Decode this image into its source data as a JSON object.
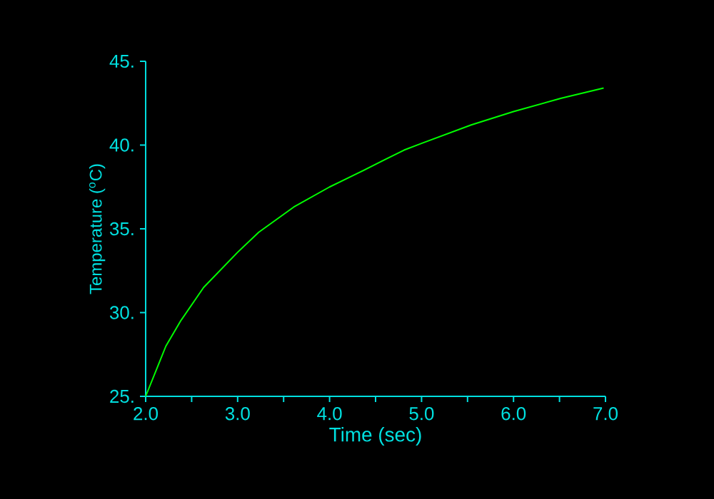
{
  "chart_data": {
    "type": "line",
    "xlabel": "Time (sec)",
    "ylabel": "Temperature ($^{o}$C)",
    "x": [
      2.0,
      2.22,
      2.38,
      2.63,
      3.0,
      3.23,
      3.61,
      4.0,
      4.3,
      4.59,
      4.81,
      5.0,
      5.54,
      6.0,
      6.52,
      6.98
    ],
    "values": [
      25.0,
      28.0,
      29.5,
      31.5,
      33.6,
      34.8,
      36.3,
      37.5,
      38.3,
      39.1,
      39.7,
      40.1,
      41.2,
      42.0,
      42.8,
      43.4
    ],
    "color": "#00ff00",
    "xlim": [
      2.0,
      7.0
    ],
    "ylim": [
      25,
      45
    ],
    "xticks": [
      {
        "value": 2.0,
        "label": "2.0"
      },
      {
        "value": 3.0,
        "label": "3.0"
      },
      {
        "value": 4.0,
        "label": "4.0"
      },
      {
        "value": 5.0,
        "label": "5.0"
      },
      {
        "value": 6.0,
        "label": "6.0"
      },
      {
        "value": 7.0,
        "label": "7.0"
      }
    ],
    "yticks": [
      {
        "value": 25,
        "label": "25."
      },
      {
        "value": 30,
        "label": "30."
      },
      {
        "value": 35,
        "label": "35."
      },
      {
        "value": 40,
        "label": "40."
      },
      {
        "value": 45,
        "label": "45."
      }
    ],
    "grid": false,
    "marker": "none",
    "line_style": "solid"
  }
}
